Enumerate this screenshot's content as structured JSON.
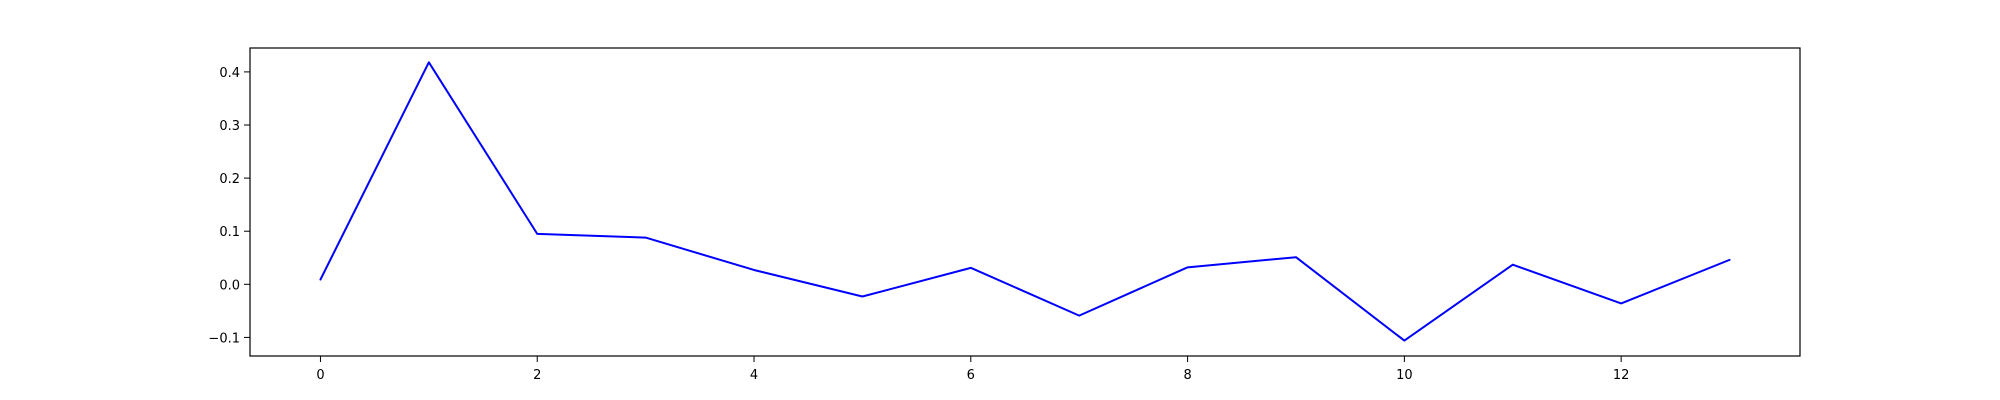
{
  "chart_data": {
    "type": "line",
    "title": "",
    "xlabel": "",
    "ylabel": "",
    "grid": false,
    "legend": false,
    "x": [
      0,
      1,
      2,
      3,
      4,
      5,
      6,
      7,
      8,
      9,
      10,
      11,
      12,
      13
    ],
    "series": [
      {
        "color": "#0000ff",
        "values": [
          0.009,
          0.418,
          0.095,
          0.088,
          0.027,
          -0.023,
          0.031,
          -0.059,
          0.032,
          0.051,
          -0.106,
          0.037,
          -0.036,
          0.046
        ]
      }
    ],
    "xlim": [
      -0.65,
      13.65
    ],
    "ylim": [
      -0.135,
      0.445
    ],
    "x_ticks": [
      0,
      2,
      4,
      6,
      8,
      10,
      12
    ],
    "x_tick_labels": [
      "0",
      "2",
      "4",
      "6",
      "8",
      "10",
      "12"
    ],
    "y_ticks": [
      -0.1,
      0.0,
      0.1,
      0.2,
      0.3,
      0.4
    ],
    "y_tick_labels": [
      "−0.1",
      "0.0",
      "0.1",
      "0.2",
      "0.3",
      "0.4"
    ]
  }
}
